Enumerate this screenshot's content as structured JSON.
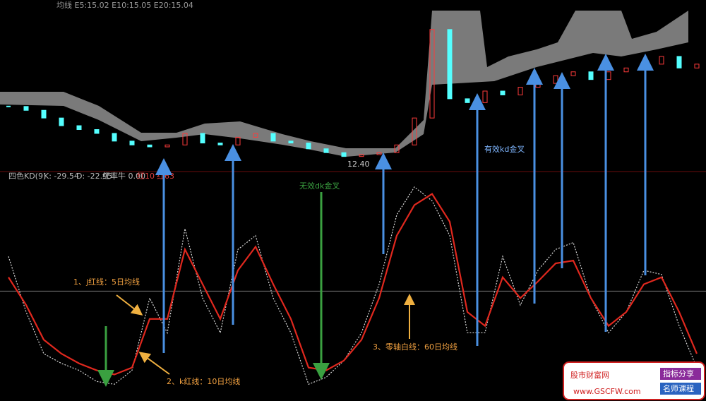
{
  "header": {
    "ma_text": "均线 E5:15.02 E10:15.05 E20:15.04",
    "low_label": "12.40"
  },
  "indicator_header": {
    "name": "四色KD(9)",
    "k": "K: -29.54",
    "d": "D: -22.95",
    "extra": "红率牛 0.00",
    "r1": "红10",
    "r2": "红63"
  },
  "annotations": {
    "valid": "有效kd金叉",
    "invalid": "无效dk金叉",
    "j_line": "1、j红线：5日均线",
    "k_line": "2、k红线：10日均线",
    "zero_line": "3、零轴白线：60日均线"
  },
  "watermark": {
    "site": "股市财富网",
    "url": "www.GSCFW.com",
    "tag1": "指标分享",
    "tag2": "名师课程"
  },
  "chart_data": [
    {
      "type": "candle",
      "categories": [
        null,
        null,
        null,
        null,
        null,
        null,
        null,
        null,
        null,
        null,
        null,
        null,
        null,
        null,
        null,
        null,
        null,
        null,
        null,
        null,
        null,
        null,
        null,
        null,
        null,
        null,
        null,
        null,
        null,
        null,
        null,
        null,
        null,
        null,
        null,
        null,
        null,
        null,
        null,
        null
      ],
      "values": [
        13.9,
        13.8,
        13.6,
        13.4,
        13.3,
        13.2,
        13.0,
        12.9,
        12.85,
        12.9,
        13.2,
        12.95,
        12.9,
        13.1,
        13.2,
        13.0,
        12.95,
        12.8,
        12.7,
        12.6,
        12.65,
        12.7,
        12.9,
        13.6,
        15.9,
        14.1,
        14.0,
        14.3,
        14.2,
        14.4,
        14.5,
        14.7,
        14.8,
        14.6,
        14.8,
        14.9,
        15.0,
        15.2,
        14.9,
        15.0
      ],
      "ylim": [
        12.3,
        16.3
      ],
      "up_color": "#ff3b3b",
      "down_color": "#54ffff"
    },
    {
      "type": "line",
      "categories": [
        null,
        null,
        null,
        null,
        null,
        null,
        null,
        null,
        null,
        null,
        null,
        null,
        null,
        null,
        null,
        null,
        null,
        null,
        null,
        null,
        null,
        null,
        null,
        null,
        null,
        null,
        null,
        null,
        null,
        null,
        null,
        null,
        null,
        null,
        null,
        null,
        null,
        null,
        null,
        null
      ],
      "series": [
        {
          "color": "#d8d8d8",
          "dashed": true,
          "values": [
            25,
            -15,
            -45,
            -52,
            -57,
            -65,
            -67,
            -57,
            -5,
            -30,
            45,
            -5,
            -30,
            30,
            40,
            -5,
            -30,
            -67,
            -62,
            -50,
            -30,
            5,
            55,
            75,
            65,
            40,
            -30,
            -30,
            25,
            -10,
            15,
            30,
            35,
            -5,
            -30,
            -15,
            15,
            12,
            -25,
            -55
          ]
        },
        {
          "color": "#e0281e",
          "dashed": false,
          "values": [
            10,
            -10,
            -35,
            -45,
            -52,
            -57,
            -60,
            -55,
            -20,
            -20,
            30,
            5,
            -20,
            15,
            32,
            5,
            -20,
            -55,
            -57,
            -50,
            -35,
            -5,
            40,
            62,
            70,
            50,
            -15,
            -25,
            10,
            -5,
            7,
            20,
            22,
            -5,
            -25,
            -15,
            5,
            10,
            -15,
            -45
          ]
        }
      ],
      "ylim": [
        -75,
        80
      ],
      "zero_line_color": "#777777"
    }
  ]
}
